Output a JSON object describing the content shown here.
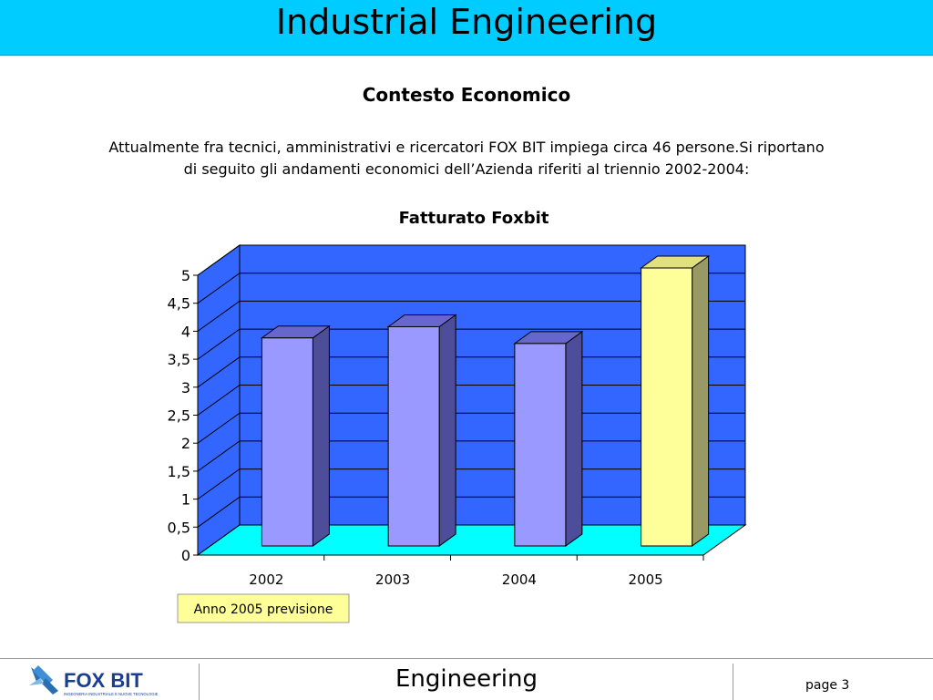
{
  "header": {
    "title": "Industrial Engineering"
  },
  "section": {
    "title": "Contesto Economico",
    "intro_line1": "Attualmente fra tecnici, amministrativi e ricercatori FOX BIT impiega circa 46 persone.Si riportano",
    "intro_line2": "di seguito gli andamenti economici dell’Azienda riferiti al triennio 2002-2004:"
  },
  "chart_data": {
    "type": "bar",
    "title": "Fatturato Foxbit",
    "categories": [
      "2002",
      "2003",
      "2004",
      "2005"
    ],
    "values": [
      3.75,
      3.95,
      3.65,
      5.0
    ],
    "ylim": [
      0,
      5
    ],
    "yticks": [
      "0",
      "0,5",
      "1",
      "1,5",
      "2",
      "2,5",
      "3",
      "3,5",
      "4",
      "4,5",
      "5"
    ],
    "xlabel": "",
    "ylabel": "",
    "grid": true,
    "colors": {
      "back_wall": "#3366ff",
      "side_wall": "#3366ff",
      "floor": "#00ffff",
      "bar_front": "#9999ff",
      "bar_top": "#6666cc",
      "bar_side": "#4d4d99",
      "forecast_front": "#ffff99",
      "forecast_top": "#e0e080",
      "forecast_side": "#999966"
    },
    "annotation": "Anno 2005 previsione"
  },
  "footer": {
    "logo_text": "FOX BIT",
    "logo_sub": "INGEGNERIA INDUSTRIALE E NUOVE TECNOLOGIE",
    "center": "Engineering",
    "page": "page 3"
  }
}
